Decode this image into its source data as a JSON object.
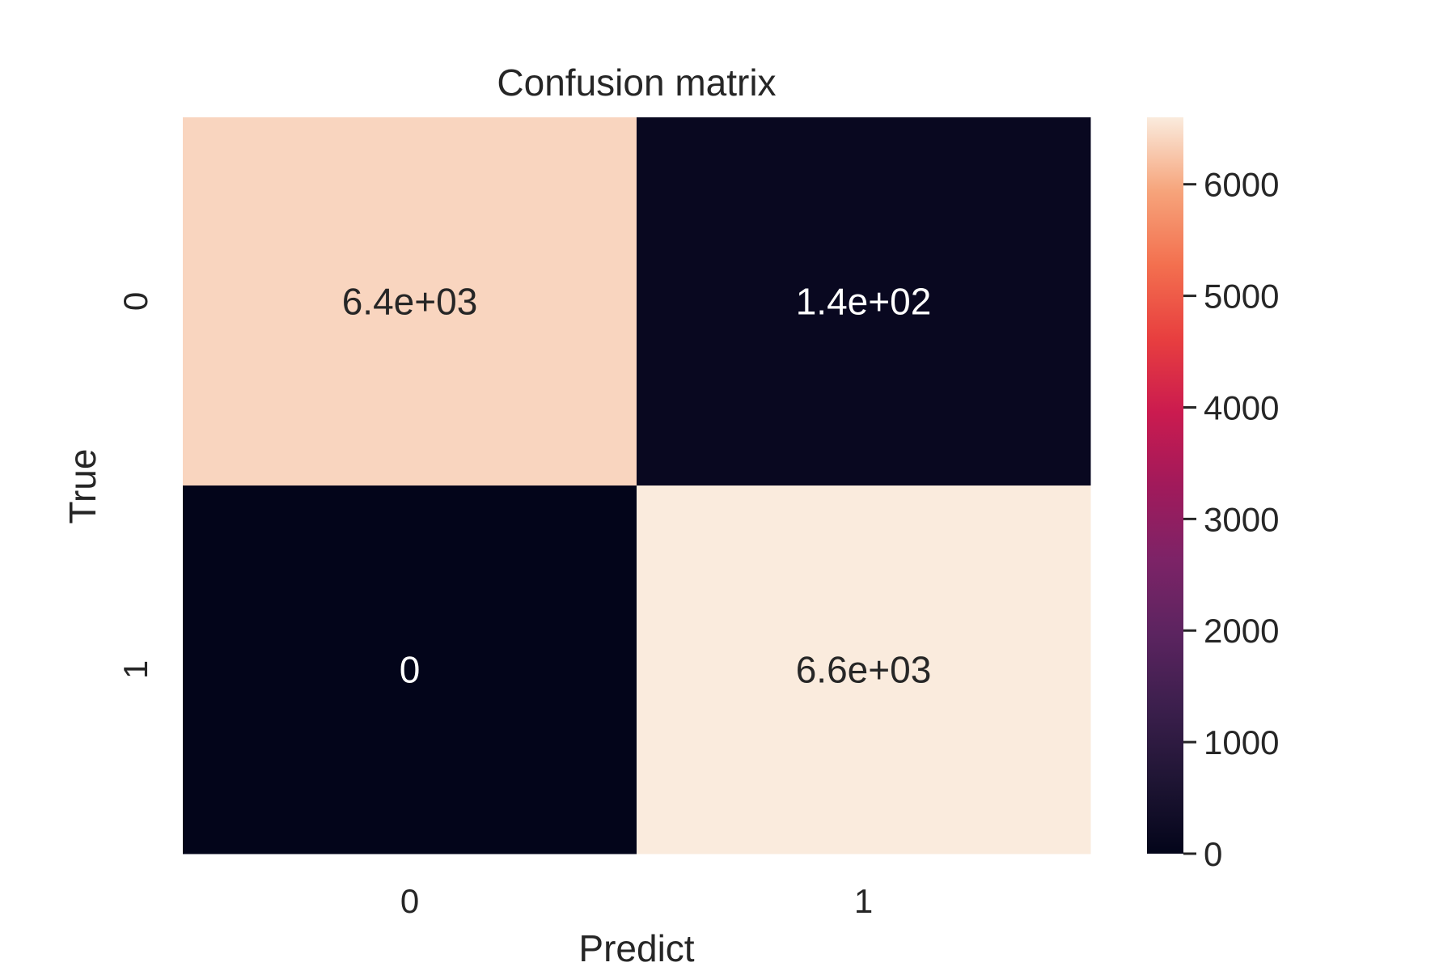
{
  "chart_data": {
    "type": "heatmap",
    "title": "Confusion matrix",
    "xlabel": "Predict",
    "ylabel": "True",
    "x_categories": [
      "0",
      "1"
    ],
    "y_categories": [
      "0",
      "1"
    ],
    "values": [
      [
        6400,
        140
      ],
      [
        0,
        6600
      ]
    ],
    "annotations": [
      [
        "6.4e+03",
        "1.4e+02"
      ],
      [
        "0",
        "6.6e+03"
      ]
    ],
    "colorbar": {
      "colormap": "rocket",
      "range": [
        0,
        6600
      ],
      "ticks": [
        0,
        1000,
        2000,
        3000,
        4000,
        5000,
        6000
      ],
      "tick_labels": [
        "0",
        "1000",
        "2000",
        "3000",
        "4000",
        "5000",
        "6000"
      ]
    },
    "colors": {
      "high": "#faebdd",
      "low": "#03051a",
      "annotation_on_light": "#262626",
      "annotation_on_dark": "#ffffff"
    }
  }
}
